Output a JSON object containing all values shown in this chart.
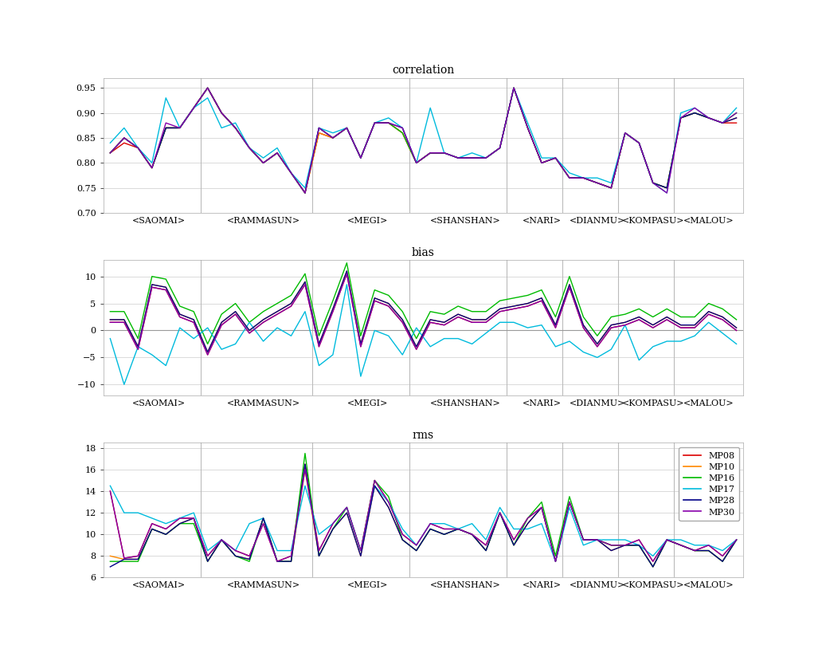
{
  "title_corr": "correlation",
  "title_bias": "bias",
  "title_rms": "rms",
  "storm_labels": [
    "<SAOMAI>",
    "<RAMMASUN>",
    "<MEGI>",
    "<SHANSHAN>",
    "<NARI>",
    "<DIANMU>",
    "<KOMPASU>",
    "<MALOU>"
  ],
  "legend_labels": [
    "MP08",
    "MP10",
    "MP16",
    "MP17",
    "MP28",
    "MP30"
  ],
  "line_colors": [
    "#dd0000",
    "#ff8800",
    "#00bb00",
    "#00bbdd",
    "#000088",
    "#8800aa"
  ],
  "n_points": 46,
  "storm_boundaries": [
    0,
    7,
    15,
    22,
    29,
    33,
    37,
    41,
    45
  ],
  "corr": {
    "MP08": [
      0.82,
      0.84,
      0.83,
      0.79,
      0.87,
      0.87,
      0.91,
      0.95,
      0.9,
      0.87,
      0.83,
      0.8,
      0.82,
      0.78,
      0.74,
      0.86,
      0.85,
      0.87,
      0.81,
      0.88,
      0.88,
      0.86,
      0.8,
      0.82,
      0.82,
      0.81,
      0.81,
      0.81,
      0.83,
      0.95,
      0.87,
      0.8,
      0.81,
      0.77,
      0.77,
      0.76,
      0.75,
      0.86,
      0.84,
      0.76,
      0.75,
      0.89,
      0.9,
      0.89,
      0.88,
      0.88
    ],
    "MP10": [
      0.82,
      0.85,
      0.83,
      0.79,
      0.87,
      0.87,
      0.91,
      0.95,
      0.9,
      0.87,
      0.83,
      0.8,
      0.82,
      0.78,
      0.74,
      0.86,
      0.85,
      0.87,
      0.81,
      0.88,
      0.88,
      0.86,
      0.8,
      0.82,
      0.82,
      0.81,
      0.81,
      0.81,
      0.83,
      0.95,
      0.87,
      0.8,
      0.81,
      0.77,
      0.77,
      0.76,
      0.75,
      0.86,
      0.84,
      0.76,
      0.75,
      0.89,
      0.9,
      0.89,
      0.88,
      0.89
    ],
    "MP16": [
      0.82,
      0.85,
      0.83,
      0.79,
      0.87,
      0.87,
      0.91,
      0.95,
      0.9,
      0.87,
      0.83,
      0.8,
      0.82,
      0.78,
      0.74,
      0.87,
      0.85,
      0.87,
      0.81,
      0.88,
      0.88,
      0.86,
      0.8,
      0.82,
      0.82,
      0.81,
      0.81,
      0.81,
      0.83,
      0.95,
      0.87,
      0.8,
      0.81,
      0.77,
      0.77,
      0.76,
      0.75,
      0.86,
      0.84,
      0.76,
      0.75,
      0.89,
      0.9,
      0.89,
      0.88,
      0.9
    ],
    "MP17": [
      0.84,
      0.87,
      0.83,
      0.8,
      0.93,
      0.87,
      0.91,
      0.93,
      0.87,
      0.88,
      0.83,
      0.81,
      0.83,
      0.78,
      0.75,
      0.87,
      0.86,
      0.87,
      0.81,
      0.88,
      0.89,
      0.87,
      0.8,
      0.91,
      0.82,
      0.81,
      0.82,
      0.81,
      0.83,
      0.95,
      0.88,
      0.81,
      0.81,
      0.78,
      0.77,
      0.77,
      0.76,
      0.86,
      0.84,
      0.76,
      0.74,
      0.9,
      0.91,
      0.89,
      0.88,
      0.91
    ],
    "MP28": [
      0.82,
      0.85,
      0.83,
      0.79,
      0.87,
      0.87,
      0.91,
      0.95,
      0.9,
      0.87,
      0.83,
      0.8,
      0.82,
      0.78,
      0.74,
      0.87,
      0.85,
      0.87,
      0.81,
      0.88,
      0.88,
      0.87,
      0.8,
      0.82,
      0.82,
      0.81,
      0.81,
      0.81,
      0.83,
      0.95,
      0.87,
      0.8,
      0.81,
      0.77,
      0.77,
      0.76,
      0.75,
      0.86,
      0.84,
      0.76,
      0.75,
      0.89,
      0.9,
      0.89,
      0.88,
      0.89
    ],
    "MP30": [
      0.82,
      0.85,
      0.83,
      0.79,
      0.88,
      0.87,
      0.91,
      0.95,
      0.9,
      0.87,
      0.83,
      0.8,
      0.82,
      0.78,
      0.74,
      0.87,
      0.85,
      0.87,
      0.81,
      0.88,
      0.88,
      0.87,
      0.8,
      0.82,
      0.82,
      0.81,
      0.81,
      0.81,
      0.83,
      0.95,
      0.87,
      0.8,
      0.81,
      0.77,
      0.77,
      0.76,
      0.75,
      0.86,
      0.84,
      0.76,
      0.74,
      0.89,
      0.91,
      0.89,
      0.88,
      0.9
    ]
  },
  "bias": {
    "MP08": [
      1.5,
      1.5,
      -3.5,
      8.0,
      7.5,
      2.5,
      1.5,
      -4.5,
      1.0,
      3.0,
      -0.5,
      1.5,
      3.0,
      4.5,
      8.5,
      -3.0,
      3.5,
      10.5,
      -3.0,
      5.5,
      4.5,
      1.5,
      -3.5,
      1.5,
      1.0,
      2.5,
      1.5,
      1.5,
      3.5,
      4.0,
      4.5,
      5.5,
      0.5,
      8.0,
      0.5,
      -3.0,
      0.5,
      1.0,
      2.0,
      0.5,
      2.0,
      0.5,
      0.5,
      3.0,
      2.0,
      0.0
    ],
    "MP10": [
      2.0,
      2.0,
      -3.0,
      8.5,
      8.0,
      3.0,
      2.0,
      -4.0,
      1.5,
      3.5,
      0.0,
      2.0,
      3.5,
      5.0,
      9.0,
      -2.5,
      4.0,
      11.0,
      -2.5,
      6.0,
      5.0,
      2.0,
      -3.0,
      2.0,
      1.5,
      3.0,
      2.0,
      2.0,
      4.0,
      4.5,
      5.0,
      6.0,
      1.0,
      8.5,
      1.0,
      -2.5,
      1.0,
      1.5,
      2.5,
      1.0,
      2.5,
      1.0,
      1.0,
      3.5,
      2.5,
      0.5
    ],
    "MP16": [
      3.5,
      3.5,
      -1.5,
      10.0,
      9.5,
      4.5,
      3.5,
      -2.5,
      3.0,
      5.0,
      1.5,
      3.5,
      5.0,
      6.5,
      10.5,
      -1.0,
      5.5,
      12.5,
      -1.0,
      7.5,
      6.5,
      3.5,
      -1.5,
      3.5,
      3.0,
      4.5,
      3.5,
      3.5,
      5.5,
      6.0,
      6.5,
      7.5,
      2.5,
      10.0,
      2.5,
      -1.0,
      2.5,
      3.0,
      4.0,
      2.5,
      4.0,
      2.5,
      2.5,
      5.0,
      4.0,
      2.0
    ],
    "MP17": [
      -1.5,
      -10.0,
      -3.0,
      -4.5,
      -6.5,
      0.5,
      -1.5,
      0.5,
      -3.5,
      -2.5,
      1.5,
      -2.0,
      0.5,
      -1.0,
      3.5,
      -6.5,
      -4.5,
      8.5,
      -8.5,
      0.0,
      -1.0,
      -4.5,
      0.5,
      -3.0,
      -1.5,
      -1.5,
      -2.5,
      -0.5,
      1.5,
      1.5,
      0.5,
      1.0,
      -3.0,
      -2.0,
      -4.0,
      -5.0,
      -3.5,
      1.0,
      -5.5,
      -3.0,
      -2.0,
      -2.0,
      -1.0,
      1.5,
      -0.5,
      -2.5
    ],
    "MP28": [
      2.0,
      2.0,
      -3.0,
      8.5,
      8.0,
      3.0,
      2.0,
      -4.0,
      1.5,
      3.5,
      0.0,
      2.0,
      3.5,
      5.0,
      9.0,
      -2.5,
      4.0,
      11.0,
      -2.5,
      6.0,
      5.0,
      2.0,
      -3.0,
      2.0,
      1.5,
      3.0,
      2.0,
      2.0,
      4.0,
      4.5,
      5.0,
      6.0,
      1.0,
      8.5,
      1.0,
      -2.5,
      1.0,
      1.5,
      2.5,
      1.0,
      2.5,
      1.0,
      1.0,
      3.5,
      2.5,
      0.5
    ],
    "MP30": [
      1.5,
      1.5,
      -3.5,
      8.0,
      7.5,
      2.5,
      1.5,
      -4.5,
      1.0,
      3.0,
      -0.5,
      1.5,
      3.0,
      4.5,
      8.5,
      -3.0,
      3.5,
      10.5,
      -3.0,
      5.5,
      4.5,
      1.5,
      -3.5,
      1.5,
      1.0,
      2.5,
      1.5,
      1.5,
      3.5,
      4.0,
      4.5,
      5.5,
      0.5,
      8.0,
      0.5,
      -3.0,
      0.5,
      1.0,
      2.0,
      0.5,
      2.0,
      0.5,
      0.5,
      3.0,
      2.0,
      0.0
    ]
  },
  "rms": {
    "MP08": [
      14.0,
      7.8,
      8.0,
      11.0,
      10.5,
      11.5,
      11.5,
      8.0,
      9.5,
      8.5,
      8.0,
      11.0,
      7.5,
      8.0,
      16.5,
      8.5,
      11.0,
      12.5,
      8.5,
      15.0,
      13.0,
      10.0,
      9.0,
      11.0,
      10.5,
      10.5,
      10.0,
      9.0,
      12.0,
      9.5,
      11.5,
      12.5,
      7.5,
      13.0,
      9.5,
      9.5,
      9.0,
      9.0,
      9.5,
      7.5,
      9.5,
      9.0,
      8.5,
      9.0,
      8.0,
      9.5
    ],
    "MP10": [
      8.0,
      7.7,
      7.7,
      10.5,
      10.0,
      11.0,
      11.5,
      7.5,
      9.5,
      8.0,
      7.7,
      11.5,
      7.5,
      7.5,
      16.0,
      8.0,
      10.5,
      12.0,
      8.0,
      14.5,
      12.5,
      9.5,
      8.5,
      10.5,
      10.0,
      10.5,
      10.0,
      8.5,
      12.0,
      9.0,
      11.0,
      12.5,
      7.5,
      13.0,
      9.5,
      9.5,
      8.5,
      9.0,
      9.0,
      7.0,
      9.5,
      9.0,
      8.5,
      8.5,
      7.5,
      9.5
    ],
    "MP16": [
      7.5,
      7.5,
      7.5,
      10.5,
      10.0,
      11.0,
      11.0,
      7.5,
      9.5,
      8.0,
      7.5,
      11.5,
      7.5,
      7.5,
      17.5,
      8.0,
      10.5,
      12.5,
      8.5,
      15.0,
      13.5,
      9.5,
      8.5,
      10.5,
      10.0,
      10.5,
      10.0,
      8.5,
      12.0,
      9.0,
      11.5,
      13.0,
      8.0,
      13.5,
      9.5,
      9.5,
      9.0,
      9.0,
      9.0,
      7.0,
      9.5,
      9.0,
      8.5,
      8.5,
      7.5,
      9.5
    ],
    "MP17": [
      14.5,
      12.0,
      12.0,
      11.5,
      11.0,
      11.5,
      12.0,
      8.5,
      9.5,
      8.5,
      11.0,
      11.5,
      8.5,
      8.5,
      14.5,
      10.0,
      11.0,
      12.5,
      8.5,
      14.5,
      13.0,
      10.5,
      9.0,
      11.0,
      11.0,
      10.5,
      11.0,
      9.5,
      12.5,
      10.5,
      10.5,
      11.0,
      7.5,
      12.5,
      9.0,
      9.5,
      9.5,
      9.5,
      9.0,
      8.0,
      9.5,
      9.5,
      9.0,
      9.0,
      8.5,
      9.5
    ],
    "MP28": [
      7.0,
      7.7,
      7.7,
      10.5,
      10.0,
      11.0,
      11.5,
      7.5,
      9.5,
      8.0,
      7.7,
      11.5,
      7.5,
      7.5,
      16.5,
      8.0,
      10.5,
      12.0,
      8.0,
      14.5,
      12.5,
      9.5,
      8.5,
      10.5,
      10.0,
      10.5,
      10.0,
      8.5,
      12.0,
      9.0,
      11.0,
      12.5,
      7.5,
      13.0,
      9.5,
      9.5,
      8.5,
      9.0,
      9.0,
      7.0,
      9.5,
      9.0,
      8.5,
      8.5,
      7.5,
      9.5
    ],
    "MP30": [
      14.0,
      7.8,
      8.0,
      11.0,
      10.5,
      11.5,
      11.5,
      8.0,
      9.5,
      8.5,
      8.0,
      11.0,
      7.5,
      8.0,
      16.0,
      8.5,
      11.0,
      12.5,
      8.5,
      15.0,
      13.0,
      10.0,
      9.0,
      11.0,
      10.5,
      10.5,
      10.0,
      9.0,
      12.0,
      9.5,
      11.5,
      12.5,
      7.5,
      13.0,
      9.5,
      9.5,
      9.0,
      9.0,
      9.5,
      7.5,
      9.5,
      9.0,
      8.5,
      9.0,
      8.0,
      9.5
    ]
  },
  "corr_ylim": [
    0.7,
    0.97
  ],
  "corr_yticks": [
    0.7,
    0.75,
    0.8,
    0.85,
    0.9,
    0.95
  ],
  "bias_ylim": [
    -12,
    13
  ],
  "bias_yticks": [
    -10,
    -5,
    0,
    5,
    10
  ],
  "rms_ylim": [
    6,
    18.5
  ],
  "rms_yticks": [
    6,
    8,
    10,
    12,
    14,
    16,
    18
  ],
  "background_color": "#ffffff",
  "grid_color": "#cccccc",
  "vline_color": "#bbbbbb",
  "zero_line_color": "#999999"
}
